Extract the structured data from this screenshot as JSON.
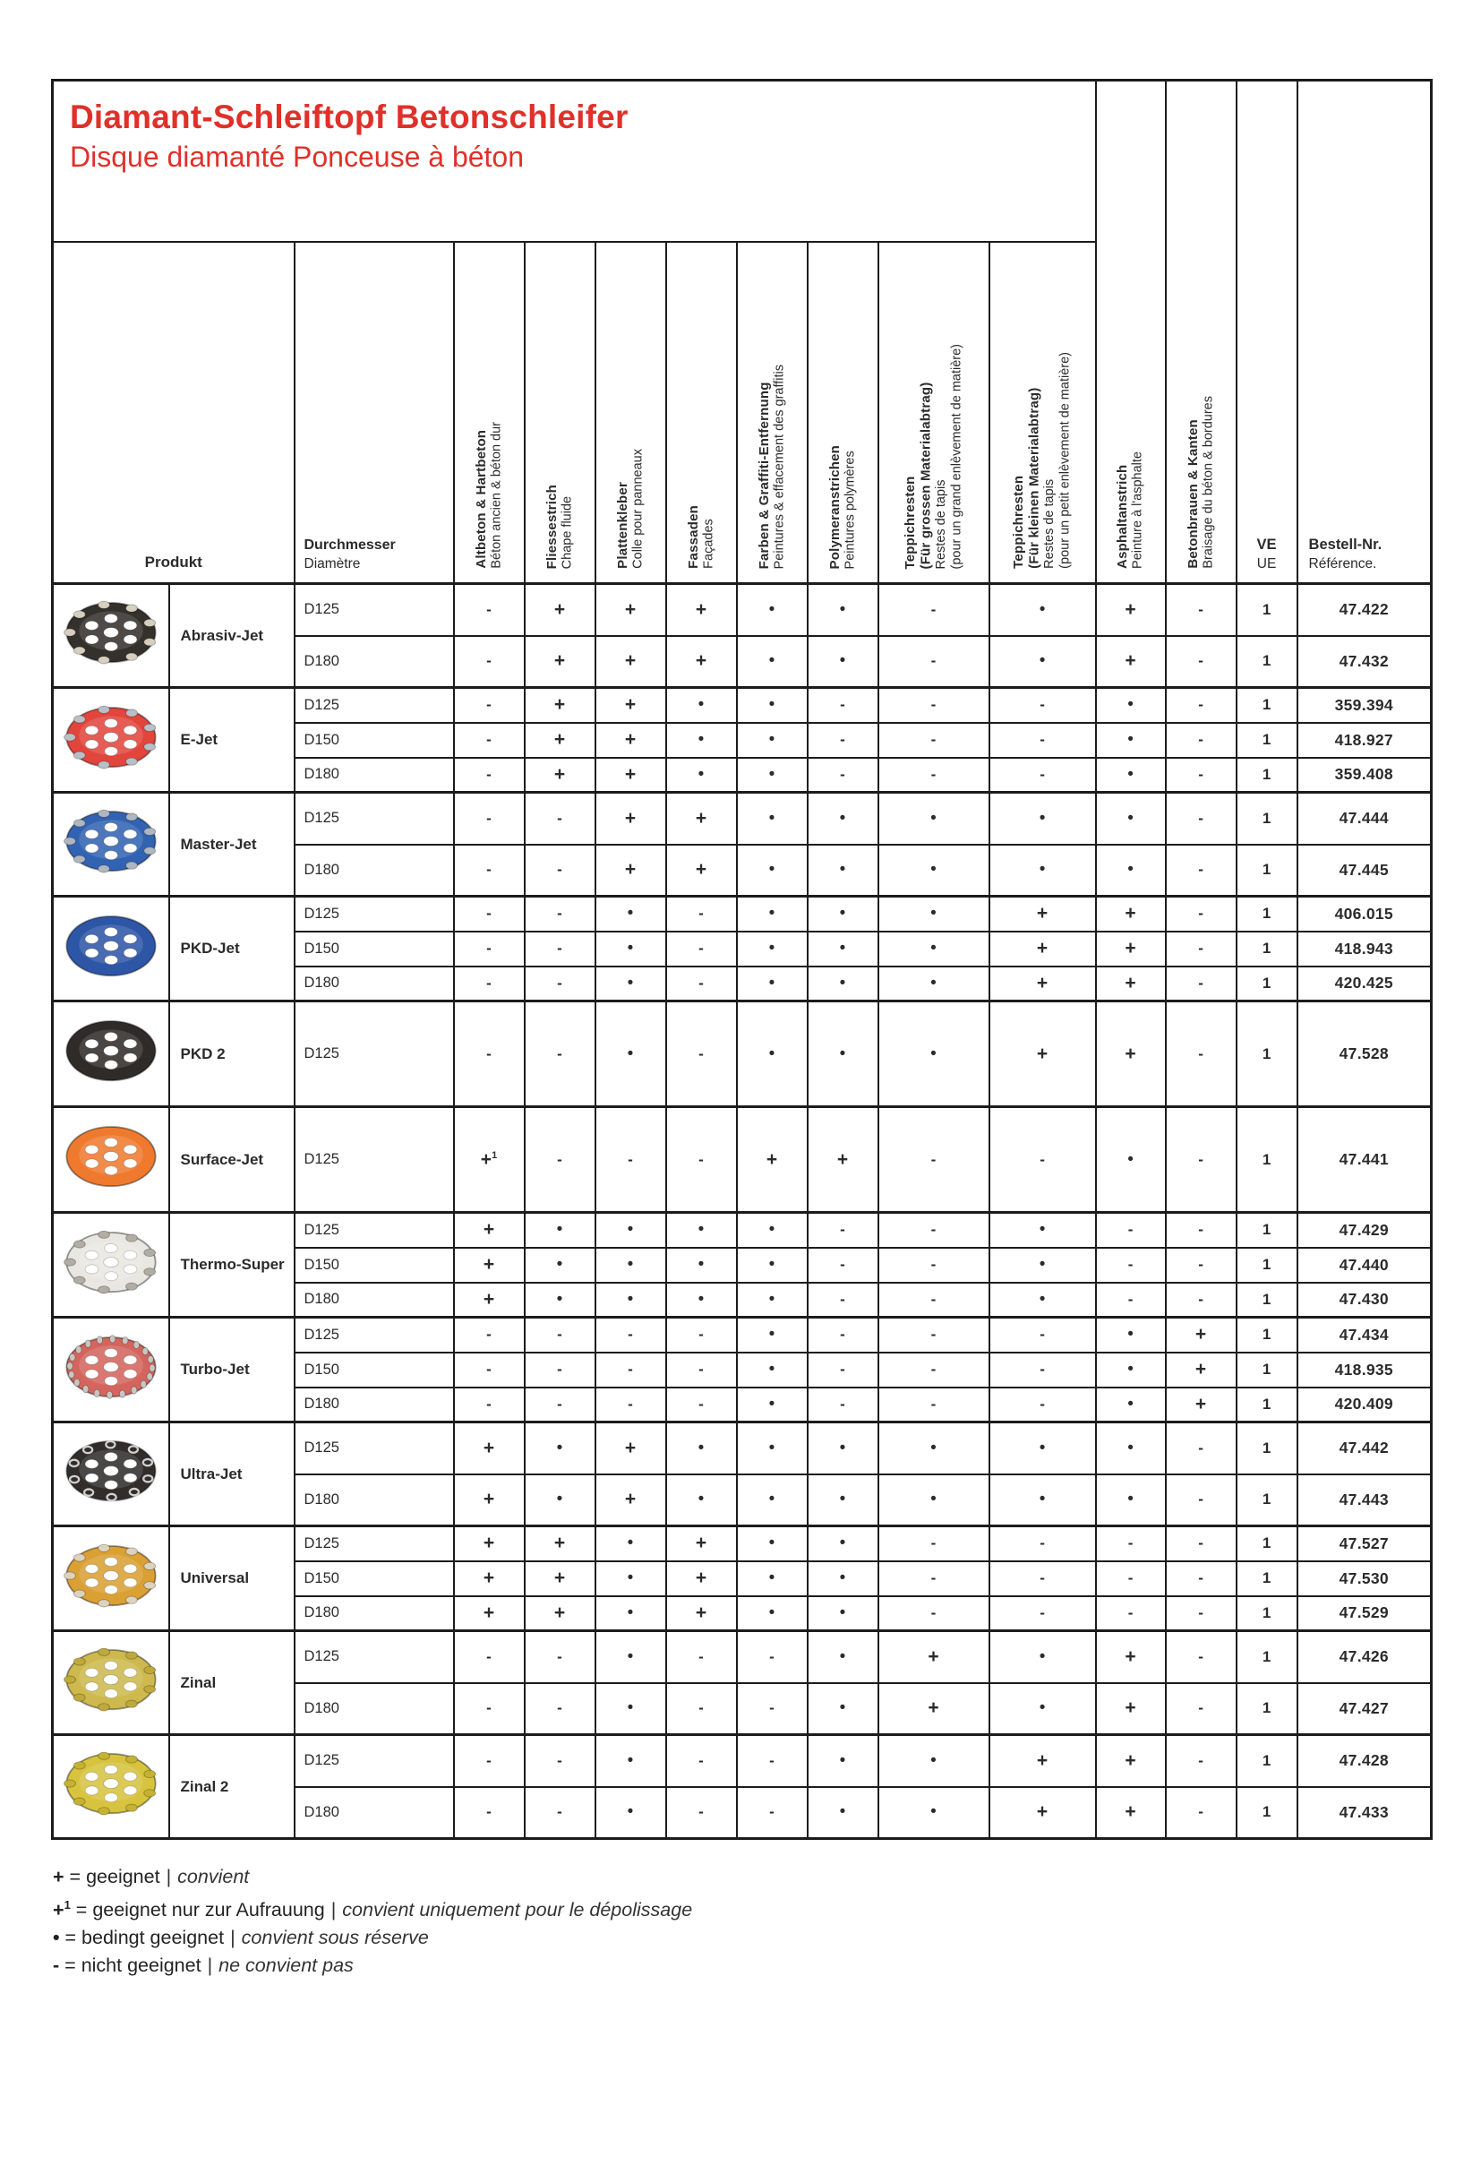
{
  "title": {
    "de": "Diamant-Schleiftopf Betonschleifer",
    "fr": "Disque diamanté Ponceuse à béton"
  },
  "columns": {
    "produkt": "Produkt",
    "durchmesser": {
      "de": "Durchmesser",
      "fr": "Diamètre"
    },
    "applications": [
      {
        "key": "altbeton",
        "de": [
          "Altbeton & Hartbeton"
        ],
        "fr": [
          "Béton ancien & béton dur"
        ]
      },
      {
        "key": "fliessestrich",
        "de": [
          "Fliessestrich"
        ],
        "fr": [
          "Chape fluide"
        ]
      },
      {
        "key": "plattenkleber",
        "de": [
          "Plattenkleber"
        ],
        "fr": [
          "Colle pour panneaux"
        ]
      },
      {
        "key": "fassaden",
        "de": [
          "Fassaden"
        ],
        "fr": [
          "Façades"
        ]
      },
      {
        "key": "farben-graffiti",
        "de": [
          "Farben & Graffiti-Entfernung"
        ],
        "fr": [
          "Peintures & effacement des graffitis"
        ]
      },
      {
        "key": "polymer",
        "de": [
          "Polymeranstrichen"
        ],
        "fr": [
          "Peintures polymères"
        ]
      },
      {
        "key": "teppich-gross",
        "de": [
          "Teppichresten",
          "(Für grossen Materialabtrag)"
        ],
        "fr": [
          "Restes de tapis",
          "(pour un grand enlèvement de matière)"
        ]
      },
      {
        "key": "teppich-klein",
        "de": [
          "Teppichresten",
          "(Für kleinen Materialabtrag)"
        ],
        "fr": [
          "Restes de tapis",
          "(pour un petit enlèvement de matière)"
        ]
      },
      {
        "key": "asphalt",
        "de": [
          "Asphaltanstrich"
        ],
        "fr": [
          "Peinture à l'asphalte"
        ]
      },
      {
        "key": "betonbrauen",
        "de": [
          "Betonbrauen & Kanten"
        ],
        "fr": [
          "Braisage du béton & bordures"
        ]
      }
    ],
    "ve": {
      "de": "VE",
      "fr": "UE"
    },
    "bestell": {
      "de": "Bestell-Nr.",
      "fr": "Référence."
    }
  },
  "products": [
    {
      "name": "Abrasiv-Jet",
      "disc": {
        "body": "#34302c",
        "seg": "#d6cfbf",
        "rim": "beads"
      },
      "rows": [
        {
          "d": "D125",
          "vals": [
            "-",
            "+",
            "+",
            "+",
            "•",
            "•",
            "-",
            "•",
            "+",
            "-"
          ],
          "ve": "1",
          "nr": "47.422"
        },
        {
          "d": "D180",
          "vals": [
            "-",
            "+",
            "+",
            "+",
            "•",
            "•",
            "-",
            "•",
            "+",
            "-"
          ],
          "ve": "1",
          "nr": "47.432"
        }
      ]
    },
    {
      "name": "E-Jet",
      "disc": {
        "body": "#e2453c",
        "seg": "#b9bfc7",
        "rim": "beads"
      },
      "rows": [
        {
          "d": "D125",
          "vals": [
            "-",
            "+",
            "+",
            "•",
            "•",
            "-",
            "-",
            "-",
            "•",
            "-"
          ],
          "ve": "1",
          "nr": "359.394"
        },
        {
          "d": "D150",
          "vals": [
            "-",
            "+",
            "+",
            "•",
            "•",
            "-",
            "-",
            "-",
            "•",
            "-"
          ],
          "ve": "1",
          "nr": "418.927"
        },
        {
          "d": "D180",
          "vals": [
            "-",
            "+",
            "+",
            "•",
            "•",
            "-",
            "-",
            "-",
            "•",
            "-"
          ],
          "ve": "1",
          "nr": "359.408"
        }
      ]
    },
    {
      "name": "Master-Jet",
      "disc": {
        "body": "#3263b2",
        "seg": "#aeb6bf",
        "rim": "beads"
      },
      "rows": [
        {
          "d": "D125",
          "vals": [
            "-",
            "-",
            "+",
            "+",
            "•",
            "•",
            "•",
            "•",
            "•",
            "-"
          ],
          "ve": "1",
          "nr": "47.444"
        },
        {
          "d": "D180",
          "vals": [
            "-",
            "-",
            "+",
            "+",
            "•",
            "•",
            "•",
            "•",
            "•",
            "-"
          ],
          "ve": "1",
          "nr": "47.445"
        }
      ]
    },
    {
      "name": "PKD-Jet",
      "disc": {
        "body": "#2d56a7",
        "seg": "#8fa6c8",
        "rim": "none"
      },
      "rows": [
        {
          "d": "D125",
          "vals": [
            "-",
            "-",
            "•",
            "-",
            "•",
            "•",
            "•",
            "+",
            "+",
            "-"
          ],
          "ve": "1",
          "nr": "406.015"
        },
        {
          "d": "D150",
          "vals": [
            "-",
            "-",
            "•",
            "-",
            "•",
            "•",
            "•",
            "+",
            "+",
            "-"
          ],
          "ve": "1",
          "nr": "418.943"
        },
        {
          "d": "D180",
          "vals": [
            "-",
            "-",
            "•",
            "-",
            "•",
            "•",
            "•",
            "+",
            "+",
            "-"
          ],
          "ve": "1",
          "nr": "420.425"
        }
      ]
    },
    {
      "name": "PKD 2",
      "disc": {
        "body": "#2f2b29",
        "seg": "#57524e",
        "rim": "none"
      },
      "rows": [
        {
          "d": "D125",
          "vals": [
            "-",
            "-",
            "•",
            "-",
            "•",
            "•",
            "•",
            "+",
            "+",
            "-"
          ],
          "ve": "1",
          "nr": "47.528"
        }
      ]
    },
    {
      "name": "Surface-Jet",
      "disc": {
        "body": "#ef7a2e",
        "seg": "#e86a1e",
        "rim": "none"
      },
      "rows": [
        {
          "d": "D125",
          "vals": [
            "+1",
            "-",
            "-",
            "-",
            "+",
            "+",
            "-",
            "-",
            "•",
            "-"
          ],
          "ve": "1",
          "nr": "47.441"
        }
      ]
    },
    {
      "name": "Thermo-Super",
      "disc": {
        "body": "#e9e7e2",
        "seg": "#b2ada3",
        "rim": "beads"
      },
      "rows": [
        {
          "d": "D125",
          "vals": [
            "+",
            "•",
            "•",
            "•",
            "•",
            "-",
            "-",
            "•",
            "-",
            "-"
          ],
          "ve": "1",
          "nr": "47.429"
        },
        {
          "d": "D150",
          "vals": [
            "+",
            "•",
            "•",
            "•",
            "•",
            "-",
            "-",
            "•",
            "-",
            "-"
          ],
          "ve": "1",
          "nr": "47.440"
        },
        {
          "d": "D180",
          "vals": [
            "+",
            "•",
            "•",
            "•",
            "•",
            "-",
            "-",
            "•",
            "-",
            "-"
          ],
          "ve": "1",
          "nr": "47.430"
        }
      ]
    },
    {
      "name": "Turbo-Jet",
      "disc": {
        "body": "#d4655e",
        "seg": "#c9c6c0",
        "rim": "stripes"
      },
      "rows": [
        {
          "d": "D125",
          "vals": [
            "-",
            "-",
            "-",
            "-",
            "•",
            "-",
            "-",
            "-",
            "•",
            "+"
          ],
          "ve": "1",
          "nr": "47.434"
        },
        {
          "d": "D150",
          "vals": [
            "-",
            "-",
            "-",
            "-",
            "•",
            "-",
            "-",
            "-",
            "•",
            "+"
          ],
          "ve": "1",
          "nr": "418.935"
        },
        {
          "d": "D180",
          "vals": [
            "-",
            "-",
            "-",
            "-",
            "•",
            "-",
            "-",
            "-",
            "•",
            "+"
          ],
          "ve": "1",
          "nr": "420.409"
        }
      ]
    },
    {
      "name": "Ultra-Jet",
      "disc": {
        "body": "#302d2b",
        "seg": "#cfcfcf",
        "rim": "rings"
      },
      "rows": [
        {
          "d": "D125",
          "vals": [
            "+",
            "•",
            "+",
            "•",
            "•",
            "•",
            "•",
            "•",
            "•",
            "-"
          ],
          "ve": "1",
          "nr": "47.442"
        },
        {
          "d": "D180",
          "vals": [
            "+",
            "•",
            "+",
            "•",
            "•",
            "•",
            "•",
            "•",
            "•",
            "-"
          ],
          "ve": "1",
          "nr": "47.443"
        }
      ]
    },
    {
      "name": "Universal",
      "disc": {
        "body": "#daa033",
        "seg": "#ddd3bd",
        "rim": "beads"
      },
      "rows": [
        {
          "d": "D125",
          "vals": [
            "+",
            "+",
            "•",
            "+",
            "•",
            "•",
            "-",
            "-",
            "-",
            "-"
          ],
          "ve": "1",
          "nr": "47.527"
        },
        {
          "d": "D150",
          "vals": [
            "+",
            "+",
            "•",
            "+",
            "•",
            "•",
            "-",
            "-",
            "-",
            "-"
          ],
          "ve": "1",
          "nr": "47.530"
        },
        {
          "d": "D180",
          "vals": [
            "+",
            "+",
            "•",
            "+",
            "•",
            "•",
            "-",
            "-",
            "-",
            "-"
          ],
          "ve": "1",
          "nr": "47.529"
        }
      ]
    },
    {
      "name": "Zinal",
      "disc": {
        "body": "#cdb94e",
        "seg": "#bfa93c",
        "rim": "beads"
      },
      "rows": [
        {
          "d": "D125",
          "vals": [
            "-",
            "-",
            "•",
            "-",
            "-",
            "•",
            "+",
            "•",
            "+",
            "-"
          ],
          "ve": "1",
          "nr": "47.426"
        },
        {
          "d": "D180",
          "vals": [
            "-",
            "-",
            "•",
            "-",
            "-",
            "•",
            "+",
            "•",
            "+",
            "-"
          ],
          "ve": "1",
          "nr": "47.427"
        }
      ]
    },
    {
      "name": "Zinal 2",
      "disc": {
        "body": "#d7c33e",
        "seg": "#c6b232",
        "rim": "beads"
      },
      "rows": [
        {
          "d": "D125",
          "vals": [
            "-",
            "-",
            "•",
            "-",
            "-",
            "•",
            "•",
            "+",
            "+",
            "-"
          ],
          "ve": "1",
          "nr": "47.428"
        },
        {
          "d": "D180",
          "vals": [
            "-",
            "-",
            "•",
            "-",
            "-",
            "•",
            "•",
            "+",
            "+",
            "-"
          ],
          "ve": "1",
          "nr": "47.433"
        }
      ]
    }
  ],
  "legend": [
    {
      "sym": "+",
      "sup": "",
      "de": "geeignet",
      "fr": "convient"
    },
    {
      "sym": "+",
      "sup": "1",
      "de": "geeignet nur zur Aufrauung",
      "fr": "convient uniquement pour le dépolissage"
    },
    {
      "sym": "•",
      "sup": "",
      "de": "bedingt geeignet",
      "fr": "convient sous réserve"
    },
    {
      "sym": "-",
      "sup": "",
      "de": "nicht geeignet",
      "fr": "ne convient pas"
    }
  ],
  "accent_color": "#e0302a"
}
